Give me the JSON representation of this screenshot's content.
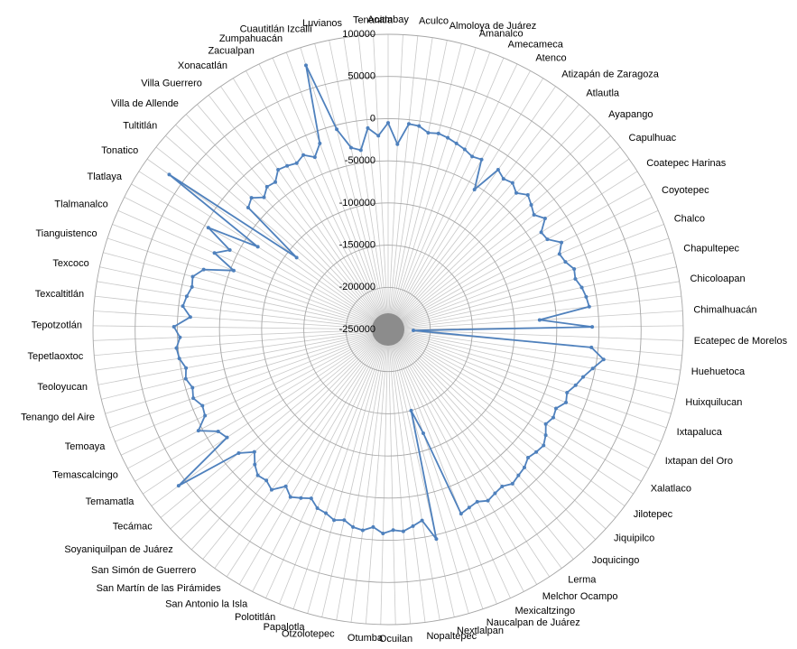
{
  "chart_data": {
    "type": "radar",
    "categories": [
      "Acambay",
      null,
      "Aculco",
      null,
      "Almoloya de Juárez",
      null,
      "Amanalco",
      null,
      "Amecameca",
      null,
      "Atenco",
      null,
      "Atizapán de Zaragoza",
      null,
      "Atlautla",
      null,
      "Ayapango",
      null,
      "Capulhuac",
      null,
      "Coatepec Harinas",
      null,
      "Coyotepec",
      null,
      "Chalco",
      null,
      "Chapultepec",
      null,
      "Chicoloapan",
      null,
      "Chimalhuacán",
      null,
      "Ecatepec de Morelos",
      null,
      "Huehuetoca",
      null,
      "Huixquilucan",
      null,
      "Ixtapaluca",
      null,
      "Ixtapan del Oro",
      null,
      "Xalatlaco",
      null,
      "Jilotepec",
      null,
      "Jiquipilco",
      null,
      "Joquicingo",
      null,
      "Lerma",
      null,
      "Melchor Ocampo",
      null,
      "Mexicaltzingo",
      null,
      "Naucalpan de Juárez",
      null,
      "Nextlalpan",
      null,
      "Nopaltepec",
      null,
      "Ocuilan",
      null,
      "Otumba",
      null,
      "Otzolotepec",
      null,
      "Papalotla",
      null,
      "Polotitlán",
      null,
      "San Antonio la Isla",
      null,
      "San Martín de las Pirámides",
      null,
      "San Simón de Guerrero",
      null,
      "Soyaniquilpan de Juárez",
      null,
      "Tecámac",
      null,
      "Temamatla",
      null,
      "Temascalcingo",
      null,
      "Temoaya",
      null,
      "Tenango del Aire",
      null,
      "Teoloyucan",
      null,
      "Tepetlaoxtoc",
      null,
      "Tepotzotlán",
      null,
      "Texcaltitlán",
      null,
      "Texcoco",
      null,
      "Tianguistenco",
      null,
      "Tlalmanalco",
      null,
      "Tlatlaya",
      null,
      "Tonatico",
      null,
      "Tultitlán",
      null,
      "Villa de Allende",
      null,
      "Villa Guerrero",
      null,
      "Xonacatlán",
      null,
      "Zacualpan",
      null,
      "Zumpahuacán",
      null,
      "Cuautitlán Izcalli",
      null,
      "Luvianos",
      null,
      "Tenanitla"
    ],
    "series": [
      {
        "color": "#4f81bd",
        "values": [
          -5000,
          -30000,
          -5000,
          -6000,
          -12000,
          -10000,
          -12000,
          -15000,
          -18000,
          -22000,
          -20000,
          -55000,
          -20000,
          -25000,
          -22000,
          -28000,
          -20000,
          -25000,
          -30000,
          -22000,
          -35000,
          -33000,
          -20000,
          -28000,
          -25000,
          -18000,
          -20000,
          -15000,
          -12000,
          -10000,
          -70000,
          -8000,
          -220000,
          -8000,
          8000,
          -3000,
          -12000,
          -18000,
          -25000,
          -22000,
          -30000,
          -28000,
          -32000,
          -25000,
          -20000,
          -22000,
          -25000,
          -20000,
          -18000,
          -15000,
          -20000,
          -18000,
          -15000,
          -20000,
          -18000,
          -15000,
          -120000,
          -150000,
          5000,
          -20000,
          -15000,
          -10000,
          -12000,
          -8000,
          -15000,
          -10000,
          -12000,
          -18000,
          -15000,
          -20000,
          -22000,
          -30000,
          -25000,
          -20000,
          -28000,
          -15000,
          -20000,
          -18000,
          -25000,
          -35000,
          -20000,
          60000,
          -20000,
          -15000,
          5000,
          -10000,
          -12000,
          -5000,
          -8000,
          -3000,
          -6000,
          0,
          2000,
          -3000,
          4000,
          -15000,
          -5000,
          -8000,
          -12000,
          -10000,
          -20000,
          -54000,
          -25000,
          -40000,
          -5000,
          -67000,
          68000,
          -112000,
          -30000,
          -25000,
          -35000,
          -28000,
          -30000,
          -20000,
          -22000,
          -25000,
          -20000,
          -28000,
          -15000,
          78000,
          -5000,
          -30000,
          -35000,
          -10000,
          -20000
        ]
      }
    ],
    "ylim": [
      -250000,
      100000
    ],
    "yticks": [
      -250000,
      -200000,
      -150000,
      -100000,
      -50000,
      0,
      50000,
      100000
    ],
    "grid": true
  }
}
